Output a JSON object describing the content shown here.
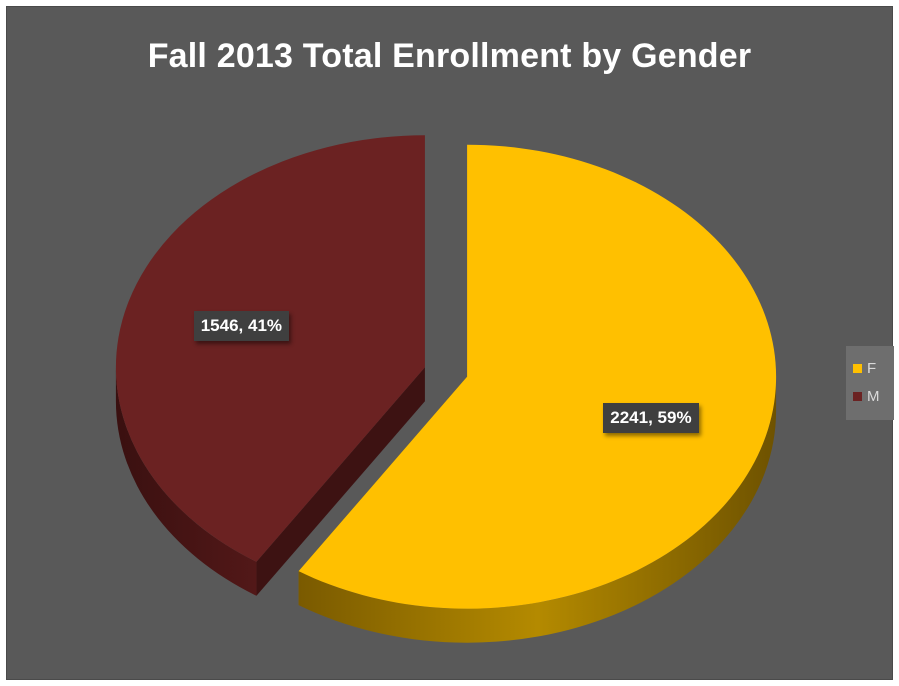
{
  "chart_data": {
    "type": "pie",
    "title": "Fall 2013 Total Enrollment by Gender",
    "categories": [
      "F",
      "M"
    ],
    "values": [
      2241,
      1546
    ],
    "percentages": [
      59,
      41
    ],
    "data_labels": [
      "2241, 59%",
      "1546, 41%"
    ],
    "colors": [
      "#FFC000",
      "#6B2222"
    ],
    "legend_position": "right",
    "exploded": true,
    "style": "3d"
  },
  "legend": {
    "items": [
      {
        "label": "F",
        "color": "#FFC000"
      },
      {
        "label": "M",
        "color": "#6B2222"
      }
    ]
  }
}
